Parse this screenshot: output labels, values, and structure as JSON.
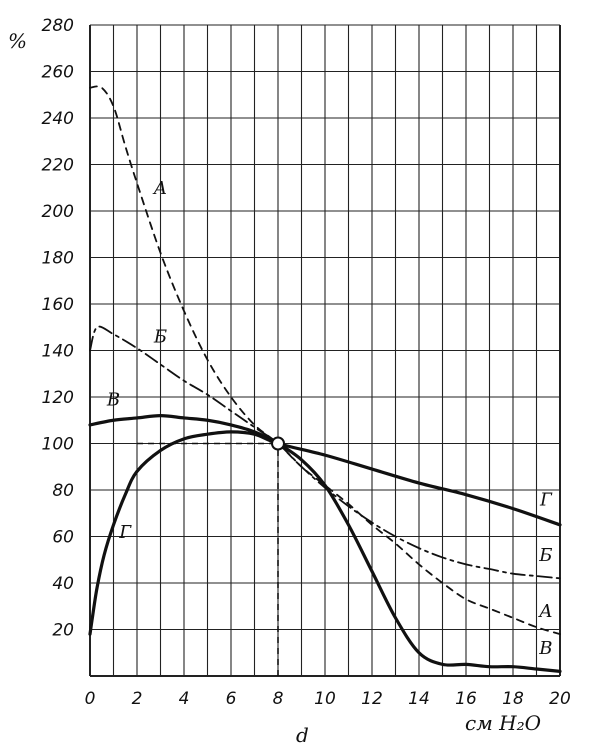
{
  "chart_data": {
    "type": "line",
    "title": "",
    "xlabel": "d",
    "xunit": "см H₂O",
    "yunit": "%",
    "xlim": [
      0,
      20
    ],
    "ylim": [
      0,
      280
    ],
    "grid": true,
    "x_ticks": [
      "0",
      "2",
      "4",
      "6",
      "8",
      "10",
      "12",
      "14",
      "16",
      "18",
      "20"
    ],
    "y_ticks": [
      "20",
      "40",
      "60",
      "80",
      "100",
      "120",
      "140",
      "160",
      "180",
      "200",
      "220",
      "240",
      "260",
      "280"
    ],
    "reference_point": {
      "x": 8,
      "y": 100
    },
    "series": [
      {
        "name": "А",
        "style": "dashed",
        "x": [
          0,
          0.5,
          1,
          1.5,
          2,
          3,
          4,
          5,
          6,
          7,
          8,
          9,
          10,
          11,
          12,
          13,
          14,
          15,
          16,
          17,
          18,
          19,
          20
        ],
        "y": [
          253,
          253,
          245,
          228,
          212,
          182,
          157,
          136,
          120,
          108,
          100,
          90,
          82,
          74,
          65,
          57,
          48,
          40,
          33,
          29,
          25,
          21,
          18
        ]
      },
      {
        "name": "Б",
        "style": "dash-dot",
        "x": [
          0,
          0.3,
          1,
          2,
          3,
          4,
          5,
          6,
          7,
          8,
          9,
          10,
          11,
          12,
          13,
          14,
          15,
          16,
          17,
          18,
          19,
          20
        ],
        "y": [
          140,
          150,
          147,
          141,
          134,
          127,
          121,
          114,
          107,
          100,
          90,
          81,
          73,
          66,
          60,
          55,
          51,
          48,
          46,
          44,
          43,
          42
        ]
      },
      {
        "name": "В",
        "style": "solid",
        "x": [
          0,
          1,
          2,
          3,
          4,
          5,
          6,
          7,
          8,
          9,
          10,
          11,
          12,
          13,
          14,
          15,
          16,
          17,
          18,
          19,
          20
        ],
        "y": [
          108,
          110,
          111,
          112,
          111,
          110,
          108,
          105,
          100,
          93,
          82,
          65,
          45,
          25,
          10,
          5,
          5,
          4,
          4,
          3,
          2
        ]
      },
      {
        "name": "Г",
        "style": "solid",
        "x": [
          0,
          0.1,
          0.3,
          0.6,
          1,
          1.5,
          2,
          3,
          4,
          5,
          6,
          7,
          8,
          10,
          12,
          14,
          16,
          18,
          20
        ],
        "y": [
          18,
          25,
          38,
          52,
          65,
          78,
          88,
          97,
          102,
          104,
          105,
          104,
          100,
          95,
          89,
          83,
          78,
          72,
          65
        ]
      }
    ],
    "hint_line": {
      "style": "dashed",
      "y": 100,
      "x_from": 2,
      "x_to": 8,
      "x": 8,
      "y_from": 0,
      "y_to": 100
    }
  }
}
